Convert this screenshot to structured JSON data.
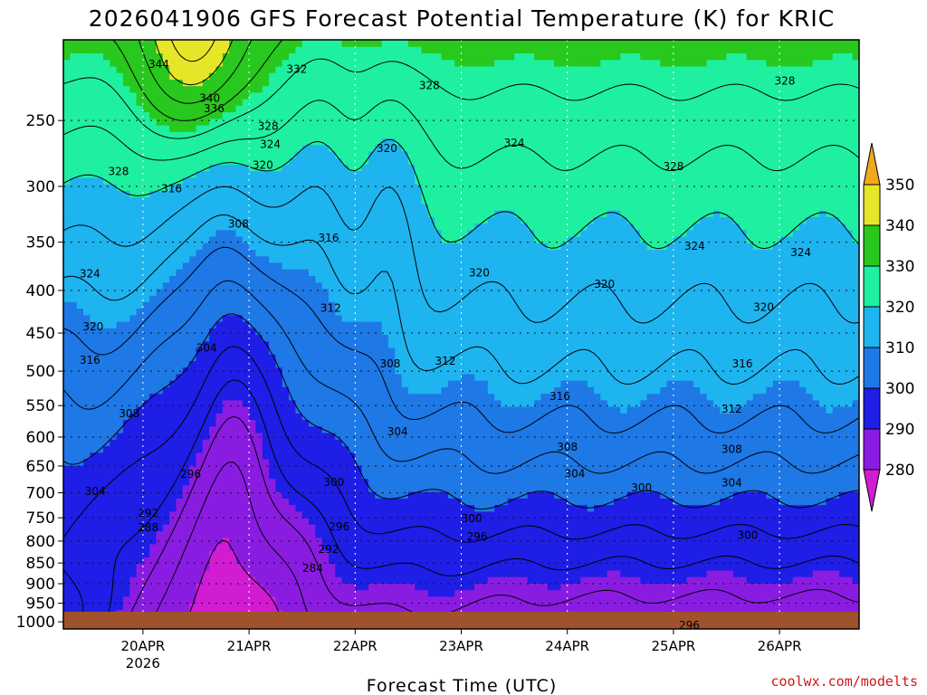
{
  "chart_data": {
    "type": "contour",
    "title": "2026041906 GFS Forecast Potential Temperature (K) for KRIC",
    "xlabel": "Forecast Time (UTC)",
    "ylabel": "",
    "credit": "coolwx.com/modelts",
    "y_axis": {
      "unit": "hPa",
      "ticks": [
        "250",
        "300",
        "350",
        "400",
        "450",
        "500",
        "550",
        "600",
        "650",
        "700",
        "750",
        "800",
        "850",
        "900",
        "950",
        "1000"
      ],
      "range": [
        1000,
        200
      ]
    },
    "x_axis": {
      "unit": "days since 2026041906 UTC",
      "range": [
        0.0,
        7.5
      ],
      "ticks": [
        {
          "label": "20APR",
          "sublabel": "2026",
          "x": 0.75
        },
        {
          "label": "21APR",
          "sublabel": "",
          "x": 1.75
        },
        {
          "label": "22APR",
          "sublabel": "",
          "x": 2.75
        },
        {
          "label": "23APR",
          "sublabel": "",
          "x": 3.75
        },
        {
          "label": "24APR",
          "sublabel": "",
          "x": 4.75
        },
        {
          "label": "25APR",
          "sublabel": "",
          "x": 5.75
        },
        {
          "label": "26APR",
          "sublabel": "",
          "x": 6.75
        }
      ]
    },
    "colorbar": {
      "levels": [
        "280",
        "290",
        "300",
        "310",
        "320",
        "330",
        "340",
        "350"
      ],
      "colors": [
        "#d21cd2",
        "#8a1ce2",
        "#1e1ee6",
        "#1e78e6",
        "#1eb4f0",
        "#1ef0a0",
        "#28c81e",
        "#e6e628",
        "#f0a81e"
      ]
    },
    "contour_interval": 4,
    "contour_labels": [
      {
        "text": "344",
        "x": 0.9,
        "p": 214
      },
      {
        "text": "332",
        "x": 2.2,
        "p": 217
      },
      {
        "text": "340",
        "x": 1.38,
        "p": 235
      },
      {
        "text": "336",
        "x": 1.42,
        "p": 242
      },
      {
        "text": "328",
        "x": 3.45,
        "p": 227
      },
      {
        "text": "328",
        "x": 6.8,
        "p": 224
      },
      {
        "text": "328",
        "x": 1.93,
        "p": 254
      },
      {
        "text": "324",
        "x": 1.95,
        "p": 267
      },
      {
        "text": "320",
        "x": 1.88,
        "p": 283
      },
      {
        "text": "320",
        "x": 3.05,
        "p": 270
      },
      {
        "text": "324",
        "x": 4.25,
        "p": 266
      },
      {
        "text": "328",
        "x": 5.75,
        "p": 284
      },
      {
        "text": "328",
        "x": 0.52,
        "p": 288
      },
      {
        "text": "316",
        "x": 1.02,
        "p": 302
      },
      {
        "text": "308",
        "x": 1.65,
        "p": 333
      },
      {
        "text": "316",
        "x": 2.5,
        "p": 346
      },
      {
        "text": "324",
        "x": 5.95,
        "p": 354
      },
      {
        "text": "324",
        "x": 6.95,
        "p": 360
      },
      {
        "text": "320",
        "x": 3.92,
        "p": 381
      },
      {
        "text": "320",
        "x": 5.1,
        "p": 393
      },
      {
        "text": "320",
        "x": 6.6,
        "p": 419
      },
      {
        "text": "324",
        "x": 0.25,
        "p": 382
      },
      {
        "text": "312",
        "x": 2.52,
        "p": 420
      },
      {
        "text": "320",
        "x": 0.28,
        "p": 442
      },
      {
        "text": "304",
        "x": 1.35,
        "p": 469
      },
      {
        "text": "316",
        "x": 0.25,
        "p": 485
      },
      {
        "text": "308",
        "x": 3.08,
        "p": 490
      },
      {
        "text": "312",
        "x": 3.6,
        "p": 486
      },
      {
        "text": "316",
        "x": 6.4,
        "p": 490
      },
      {
        "text": "316",
        "x": 4.68,
        "p": 536
      },
      {
        "text": "308",
        "x": 0.62,
        "p": 562
      },
      {
        "text": "312",
        "x": 6.3,
        "p": 555
      },
      {
        "text": "304",
        "x": 3.15,
        "p": 591
      },
      {
        "text": "308",
        "x": 4.75,
        "p": 617
      },
      {
        "text": "308",
        "x": 6.3,
        "p": 621
      },
      {
        "text": "296",
        "x": 1.2,
        "p": 665
      },
      {
        "text": "304",
        "x": 4.82,
        "p": 664
      },
      {
        "text": "300",
        "x": 2.55,
        "p": 680
      },
      {
        "text": "304",
        "x": 6.3,
        "p": 681
      },
      {
        "text": "300",
        "x": 5.45,
        "p": 690
      },
      {
        "text": "304",
        "x": 0.3,
        "p": 697
      },
      {
        "text": "292",
        "x": 0.8,
        "p": 740
      },
      {
        "text": "300",
        "x": 3.85,
        "p": 752
      },
      {
        "text": "288",
        "x": 0.8,
        "p": 771
      },
      {
        "text": "296",
        "x": 2.6,
        "p": 769
      },
      {
        "text": "296",
        "x": 3.9,
        "p": 790
      },
      {
        "text": "300",
        "x": 6.45,
        "p": 787
      },
      {
        "text": "292",
        "x": 2.5,
        "p": 818
      },
      {
        "text": "284",
        "x": 2.35,
        "p": 863
      },
      {
        "text": "296",
        "x": 5.9,
        "p": 1010
      }
    ]
  }
}
